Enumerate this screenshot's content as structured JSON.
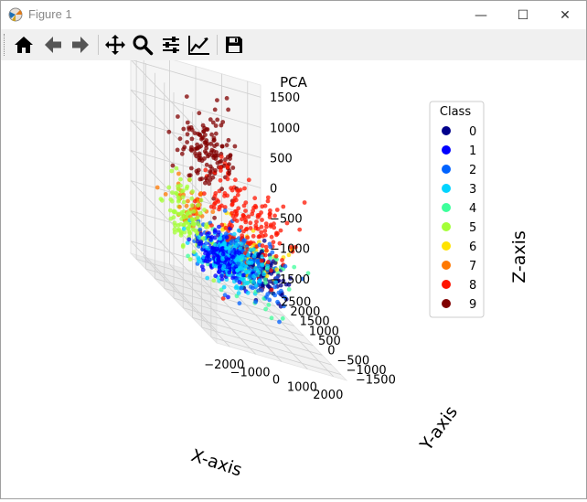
{
  "window": {
    "title": "Figure 1"
  },
  "window_controls": {
    "minimize": "—",
    "maximize": "☐",
    "close": "✕"
  },
  "toolbar": {
    "buttons": [
      "home-icon",
      "back-arrow-icon",
      "forward-arrow-icon",
      "pan-move-icon",
      "zoom-magnifier-icon",
      "configure-subplots-icon",
      "edit-axis-icon",
      "save-icon"
    ]
  },
  "chart_data": {
    "type": "scatter",
    "projection": "3d",
    "title": "PCA",
    "xlabel": "X-axis",
    "ylabel": "Y-axis",
    "zlabel": "Z-axis",
    "x_ticks": [
      "−2000",
      "−1000",
      "0",
      "1000",
      "2000"
    ],
    "y_ticks": [
      "−1500",
      "−1000",
      "−500",
      "0",
      "500",
      "1000",
      "1500",
      "2000",
      "2500"
    ],
    "z_ticks": [
      "1500",
      "1000",
      "500",
      "0",
      "−500",
      "−1000",
      "−1500"
    ],
    "xlim": [
      -2500,
      2500
    ],
    "ylim": [
      -1800,
      2800
    ],
    "zlim": [
      -1700,
      1700
    ],
    "grid": true,
    "legend": {
      "title": "Class",
      "location": "right",
      "entries": [
        "0",
        "1",
        "2",
        "3",
        "4",
        "5",
        "6",
        "7",
        "8",
        "9"
      ]
    },
    "colors": [
      "#00008b",
      "#0000ff",
      "#0062ff",
      "#00d4ff",
      "#3dff9b",
      "#a4ff37",
      "#ffe300",
      "#ff7800",
      "#ff1400",
      "#800000"
    ],
    "series": [
      {
        "name": "0",
        "center": [
          1100,
          900,
          -900
        ],
        "spread": [
          420,
          500,
          170
        ],
        "n": 130
      },
      {
        "name": "1",
        "center": [
          -1150,
          -150,
          -650
        ],
        "spread": [
          350,
          320,
          160
        ],
        "n": 190
      },
      {
        "name": "2",
        "center": [
          -200,
          300,
          -700
        ],
        "spread": [
          700,
          700,
          220
        ],
        "n": 140
      },
      {
        "name": "3",
        "center": [
          -700,
          0,
          -700
        ],
        "spread": [
          550,
          420,
          180
        ],
        "n": 220
      },
      {
        "name": "4",
        "center": [
          700,
          700,
          -900
        ],
        "spread": [
          650,
          550,
          200
        ],
        "n": 70
      },
      {
        "name": "5",
        "center": [
          -1750,
          800,
          -400
        ],
        "spread": [
          260,
          420,
          260
        ],
        "n": 110
      },
      {
        "name": "6",
        "center": [
          900,
          1200,
          -800
        ],
        "spread": [
          650,
          600,
          200
        ],
        "n": 70
      },
      {
        "name": "7",
        "center": [
          -1300,
          1400,
          -250
        ],
        "spread": [
          300,
          300,
          200
        ],
        "n": 40
      },
      {
        "name": "8",
        "center": [
          400,
          700,
          -200
        ],
        "spread": [
          750,
          700,
          380
        ],
        "n": 190
      },
      {
        "name": "9",
        "center": [
          -300,
          1700,
          650
        ],
        "spread": [
          480,
          330,
          330
        ],
        "n": 140
      }
    ]
  }
}
